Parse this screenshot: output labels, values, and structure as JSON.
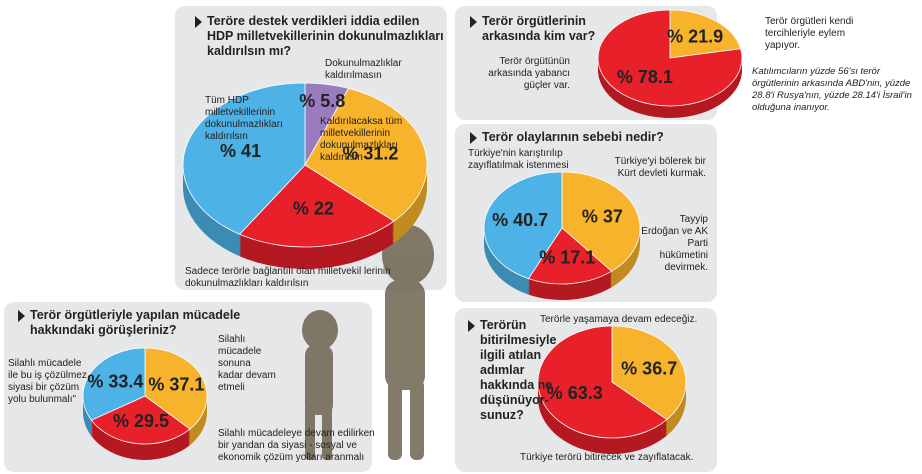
{
  "chart_data": [
    {
      "type": "pie",
      "title": "Teröre destek verdikleri iddia edilen HDP milletvekillerinin dokunulmazlıkları kaldırılsın mı?",
      "categories": [
        "Dokunulmazlıklar kaldırılmasın",
        "Kaldırılacaksa tüm milletvekillerinin dokunulmazlıkları kaldırılsın",
        "Sadece terörle bağlantılı olan milletvekil lerinin dokunulmazlıkları kaldırılsın",
        "Tüm HDP milletvekillerinin dokunulmazlıkları kaldırılsın"
      ],
      "values": [
        5.8,
        31.2,
        22,
        41
      ],
      "value_labels": [
        "% 5.8",
        "% 31.2",
        "% 22",
        "% 41"
      ],
      "colors": [
        "#9b7bc0",
        "#f7b32b",
        "#e8202a",
        "#4db3e6"
      ]
    },
    {
      "type": "pie",
      "title": "Terör örgütlerinin arkasında kim var?",
      "categories": [
        "Terör örgütleri kendi tercihleriyle eylem yapıyor.",
        "Terör örgütünün arkasında yabancı güçler var."
      ],
      "values": [
        21.9,
        78.1
      ],
      "value_labels": [
        "% 21.9",
        "% 78.1"
      ],
      "colors": [
        "#f7b32b",
        "#e8202a"
      ],
      "annotation": "Katılımcıların yüzde 56'sı terör örgütlerinin arkasında ABD'nin, yüzde 28.8'i Rusya'nın, yüzde 28.14'i İsrail'in olduğuna inanıyor."
    },
    {
      "type": "pie",
      "title": "Terör olaylarının sebebi nedir?",
      "categories": [
        "Türkiye'yi bölerek bir Kürt devleti kurmak.",
        "Tayyip Erdoğan ve AK Parti hükümetini devirmek.",
        "Türkiye'nin karıştırılıp zayıflatılmak istenmesi"
      ],
      "values": [
        37,
        17.1,
        40.7
      ],
      "value_labels": [
        "% 37",
        "% 17.1",
        "% 40.7"
      ],
      "colors": [
        "#f7b32b",
        "#e8202a",
        "#4db3e6"
      ]
    },
    {
      "type": "pie",
      "title": "Terör örgütleriyle yapılan mücadele hakkındaki görüşleriniz?",
      "categories": [
        "Silahlı mücadele sonuna kadar devam etmeli",
        "Silahlı mücadeleye devam edilirken bir yandan da siyasi - sosyal ve ekonomik çözüm yolları aranmalı",
        "Silahlı mücadele ile bu iş çözülmez, siyasi bir çözüm yolu bulunmalı\""
      ],
      "values": [
        37.1,
        29.5,
        33.4
      ],
      "value_labels": [
        "% 37.1",
        "% 29.5",
        "% 33.4"
      ],
      "colors": [
        "#f7b32b",
        "#e8202a",
        "#4db3e6"
      ]
    },
    {
      "type": "pie",
      "title": "Terörün bitirilmesiyle ilgili atılan adımlar hakkında ne düşünüyor-sunuz?",
      "categories": [
        "Terörle yaşamaya devam edeceğiz.",
        "Türkiye terörü bitirecek ve zayıflatacak."
      ],
      "values": [
        36.7,
        63.3
      ],
      "value_labels": [
        "% 36.7",
        "% 63.3"
      ],
      "colors": [
        "#f7b32b",
        "#e8202a"
      ]
    }
  ]
}
